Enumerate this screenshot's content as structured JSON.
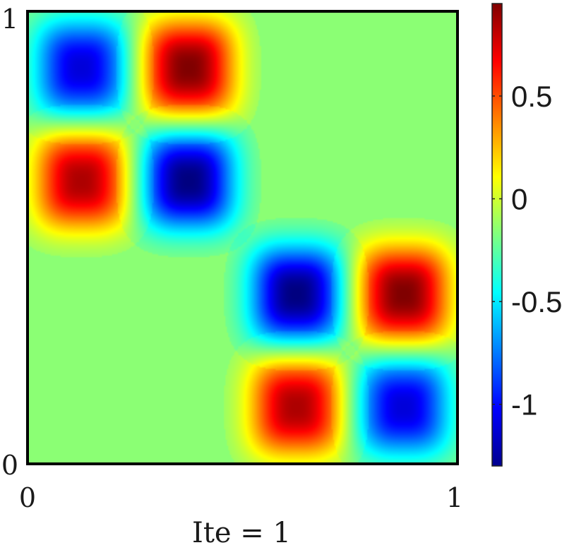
{
  "chart_data": {
    "type": "heatmap",
    "title": "",
    "xlabel": "Ite = 1",
    "ylabel": "",
    "xlim": [
      0,
      1
    ],
    "ylim": [
      0,
      1
    ],
    "x_ticks": [
      "0",
      "1"
    ],
    "y_ticks": [
      "0",
      "1"
    ],
    "colormap": "jet",
    "colorbar": {
      "range": [
        -1.3,
        0.95
      ],
      "ticks": [
        {
          "value": 0.5,
          "label": "0.5"
        },
        {
          "value": 0,
          "label": "0"
        },
        {
          "value": -0.5,
          "label": "-0.5"
        },
        {
          "value": -1,
          "label": "-1"
        }
      ],
      "placement": "right"
    },
    "background_value": -0.15,
    "blobs": [
      {
        "x": 0.125,
        "y": 0.875,
        "value": -1.1
      },
      {
        "x": 0.375,
        "y": 0.875,
        "value": 0.95
      },
      {
        "x": 0.125,
        "y": 0.625,
        "value": 0.85
      },
      {
        "x": 0.375,
        "y": 0.625,
        "value": -1.3
      },
      {
        "x": 0.625,
        "y": 0.375,
        "value": -1.3
      },
      {
        "x": 0.875,
        "y": 0.375,
        "value": 0.95
      },
      {
        "x": 0.625,
        "y": 0.125,
        "value": 0.85
      },
      {
        "x": 0.875,
        "y": 0.125,
        "value": -1.1
      }
    ],
    "grid": false
  }
}
